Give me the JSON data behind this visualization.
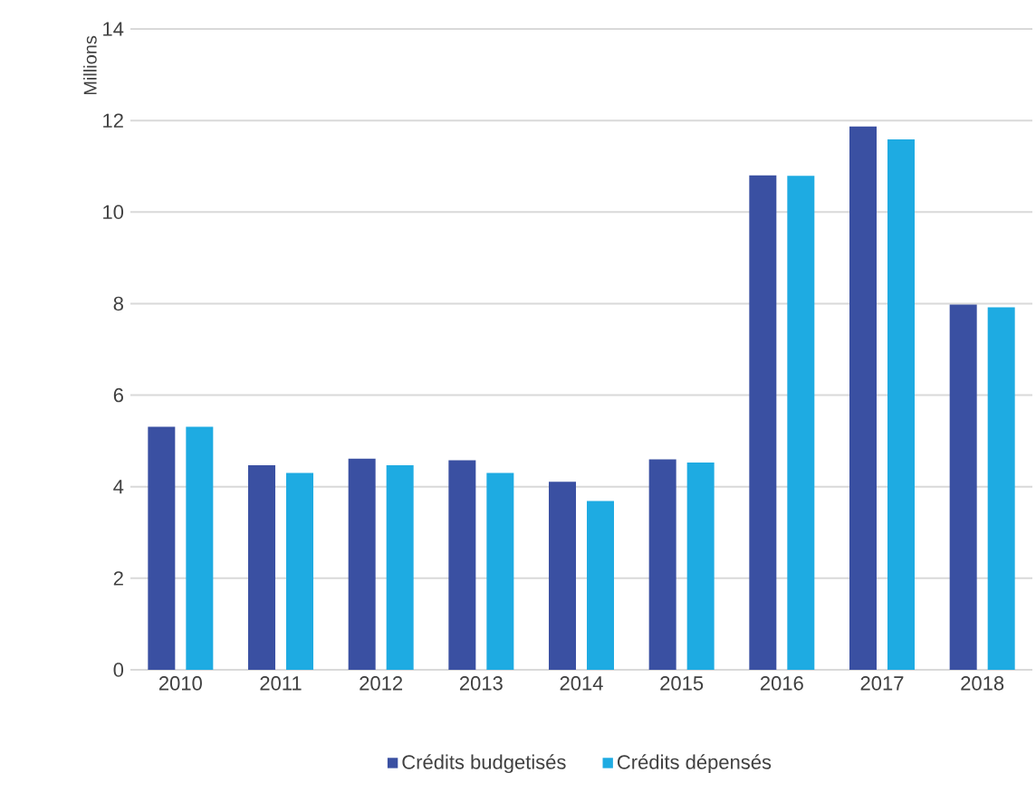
{
  "chart_data": {
    "type": "bar",
    "ylabel": "Millions",
    "categories": [
      "2010",
      "2011",
      "2012",
      "2013",
      "2014",
      "2015",
      "2016",
      "2017",
      "2018"
    ],
    "series": [
      {
        "name": "Crédits budgetisés",
        "color": "#3a50a2",
        "values": [
          5.31,
          4.47,
          4.61,
          4.58,
          4.11,
          4.6,
          10.8,
          11.87,
          7.98
        ]
      },
      {
        "name": "Crédits dépensés",
        "color": "#1eabe2",
        "values": [
          5.31,
          4.3,
          4.47,
          4.3,
          3.69,
          4.53,
          10.79,
          11.59,
          7.92
        ]
      }
    ],
    "ylim": [
      0,
      14
    ],
    "yticks": [
      0,
      2,
      4,
      6,
      8,
      10,
      12,
      14
    ],
    "grid": "y",
    "legend": "bottom"
  }
}
